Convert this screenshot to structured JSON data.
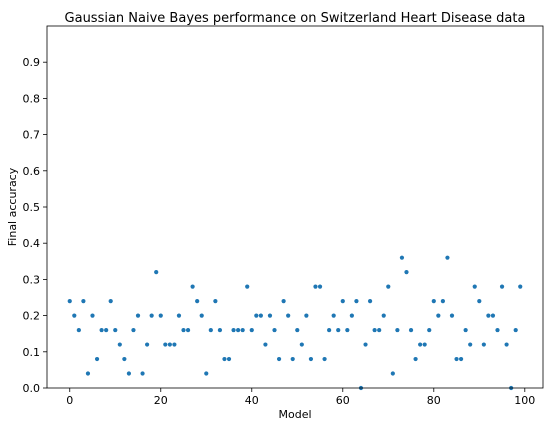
{
  "chart_data": {
    "type": "scatter",
    "title": "Gaussian Naive Bayes performance on Switzerland Heart Disease data",
    "xlabel": "Model",
    "ylabel": "Final accuracy",
    "xlim": [
      -5,
      104
    ],
    "ylim": [
      0,
      1
    ],
    "grid": false,
    "legend": "none",
    "marker_color": "#1f77b4",
    "xticks": [
      0,
      20,
      40,
      60,
      80,
      100
    ],
    "yticks": [
      0.0,
      0.1,
      0.2,
      0.3,
      0.4,
      0.5,
      0.6,
      0.7,
      0.8,
      0.9
    ],
    "x": [
      0,
      1,
      2,
      3,
      4,
      5,
      6,
      7,
      8,
      9,
      10,
      11,
      12,
      13,
      14,
      15,
      16,
      17,
      18,
      19,
      20,
      21,
      22,
      23,
      24,
      25,
      26,
      27,
      28,
      29,
      30,
      31,
      32,
      33,
      34,
      35,
      36,
      37,
      38,
      39,
      40,
      41,
      42,
      43,
      44,
      45,
      46,
      47,
      48,
      49,
      50,
      51,
      52,
      53,
      54,
      55,
      56,
      57,
      58,
      59,
      60,
      61,
      62,
      63,
      64,
      65,
      66,
      67,
      68,
      69,
      70,
      71,
      72,
      73,
      74,
      75,
      76,
      77,
      78,
      79,
      80,
      81,
      82,
      83,
      84,
      85,
      86,
      87,
      88,
      89,
      90,
      91,
      92,
      93,
      94,
      95,
      96,
      97,
      98,
      99
    ],
    "y": [
      0.24,
      0.2,
      0.16,
      0.24,
      0.04,
      0.2,
      0.08,
      0.16,
      0.16,
      0.24,
      0.16,
      0.12,
      0.08,
      0.04,
      0.16,
      0.2,
      0.04,
      0.12,
      0.2,
      0.32,
      0.2,
      0.12,
      0.12,
      0.12,
      0.2,
      0.16,
      0.16,
      0.28,
      0.24,
      0.2,
      0.04,
      0.16,
      0.24,
      0.16,
      0.08,
      0.08,
      0.16,
      0.16,
      0.16,
      0.28,
      0.16,
      0.2,
      0.2,
      0.12,
      0.2,
      0.16,
      0.08,
      0.24,
      0.2,
      0.08,
      0.16,
      0.12,
      0.2,
      0.08,
      0.28,
      0.28,
      0.08,
      0.16,
      0.2,
      0.16,
      0.24,
      0.16,
      0.2,
      0.24,
      0.0,
      0.12,
      0.24,
      0.16,
      0.16,
      0.2,
      0.28,
      0.04,
      0.16,
      0.36,
      0.32,
      0.16,
      0.08,
      0.12,
      0.12,
      0.16,
      0.24,
      0.2,
      0.24,
      0.36,
      0.2,
      0.08,
      0.08,
      0.16,
      0.12,
      0.28,
      0.24,
      0.12,
      0.2,
      0.2,
      0.16,
      0.28,
      0.12,
      0.0,
      0.16,
      0.28
    ]
  }
}
